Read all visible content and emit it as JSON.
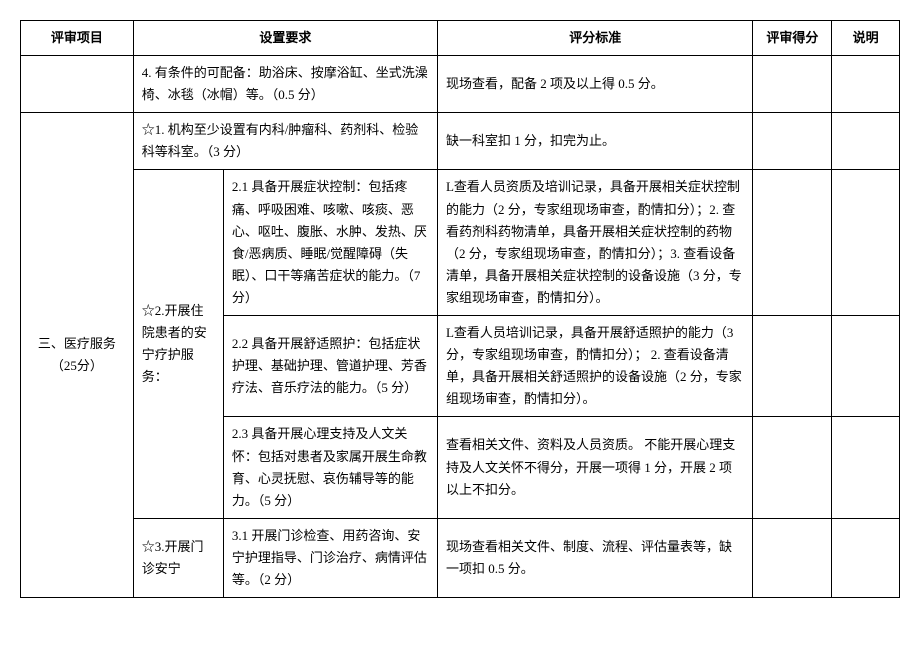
{
  "headers": {
    "item": "评审项目",
    "req": "设置要求",
    "std": "评分标准",
    "score": "评审得分",
    "note": "说明"
  },
  "rows": {
    "r1_req": "4. 有条件的可配备：助浴床、按摩浴缸、坐式洗澡椅、冰毯（冰帽）等。（0.5 分）",
    "r1_std": "现场查看，配备 2 项及以上得 0.5 分。",
    "section_item": "三、医疗服务（25分）",
    "r2_req": "☆1. 机构至少设置有内科/肿瘤科、药剂科、检验科等科室。（3 分）",
    "r2_std": "缺一科室扣 1 分，扣完为止。",
    "r3_sub": "☆2.开展住院患者的安宁疗护服务：",
    "r3_req": "2.1 具备开展症状控制：包括疼痛、呼吸困难、咳嗽、咳痰、恶心、呕吐、腹胀、水肿、发热、厌食/恶病质、睡眠/觉醒障碍（失眠）、口干等痛苦症状的能力。（7 分）",
    "r3_std": "L查看人员资质及培训记录，具备开展相关症状控制的能力（2 分，专家组现场审查，酌情扣分）；2. 查看药剂科药物清单，具备开展相关症状控制的药物（2 分，专家组现场审查，酌情扣分）；3. 查看设备清单，具备开展相关症状控制的设备设施（3 分，专家组现场审查，酌情扣分）。",
    "r4_req": "2.2 具备开展舒适照护：包括症状护理、基础护理、管道护理、芳香疗法、音乐疗法的能力。（5 分）",
    "r4_std": "L查看人员培训记录，具备开展舒适照护的能力（3 分，专家组现场审查，酌情扣分）；\n2. 查看设备清单，具备开展相关舒适照护的设备设施（2 分，专家组现场审查，酌情扣分）。",
    "r5_req": "2.3 具备开展心理支持及人文关怀：包括对患者及家属开展生命教育、心灵抚慰、哀伤辅导等的能力。（5 分）",
    "r5_std": "查看相关文件、资料及人员资质。\n不能开展心理支持及人文关怀不得分，开展一项得 1 分，开展 2 项以上不扣分。",
    "r6_sub": "☆3.开展门诊安宁",
    "r6_req": "3.1 开展门诊检查、用药咨询、安宁护理指导、门诊治疗、病情评估等。（2 分）",
    "r6_std": "现场查看相关文件、制度、流程、评估量表等，缺一项扣 0.5 分。"
  }
}
